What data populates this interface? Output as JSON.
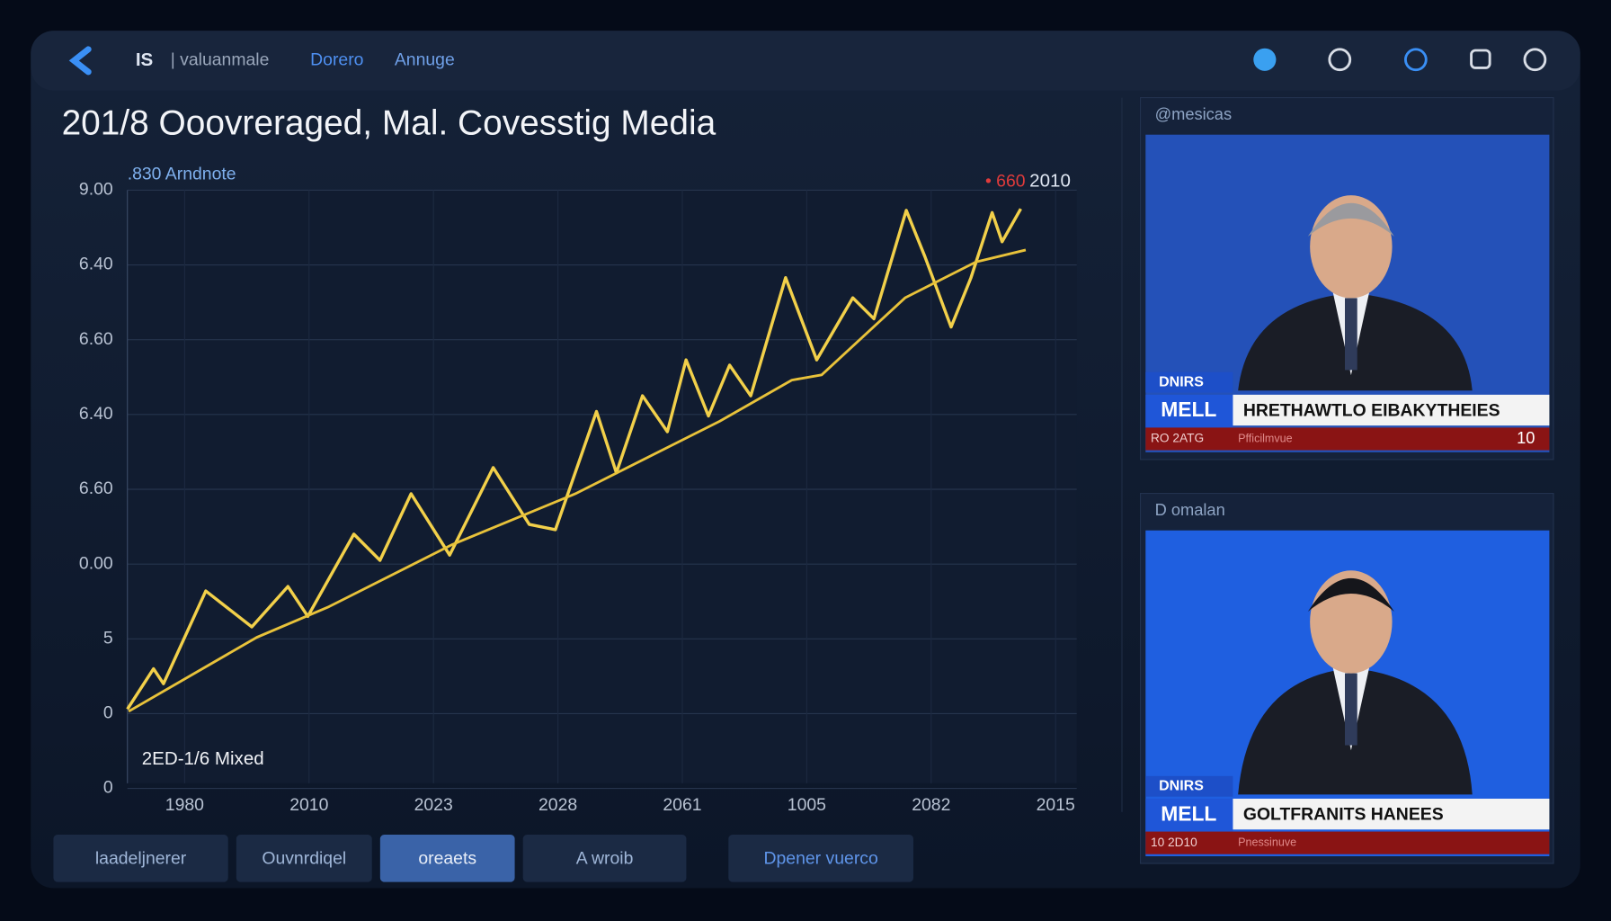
{
  "nav": {
    "badge": "IS",
    "items": [
      "| valuanmale",
      "Dorero",
      "Annuge"
    ]
  },
  "chart_data": {
    "type": "line",
    "title": "201/8 Ooovreraged, Mal. Covesstig Media",
    "annotation": ".830 Arndnote",
    "marker_label": "• 660",
    "marker_year": "2010",
    "note": "2ED-1/6 Mixed",
    "xlim": [
      -0.46,
      7.17
    ],
    "ylim": [
      0,
      8
    ],
    "grid": true,
    "xticks": [
      {
        "value": 0,
        "label": "1980"
      },
      {
        "value": 1,
        "label": "2010"
      },
      {
        "value": 2,
        "label": "2023"
      },
      {
        "value": 3,
        "label": "2028"
      },
      {
        "value": 4,
        "label": "2061"
      },
      {
        "value": 5,
        "label": "1005"
      },
      {
        "value": 6,
        "label": "2082"
      },
      {
        "value": 7,
        "label": "2015"
      }
    ],
    "yticks": [
      {
        "value": 0,
        "label": "0"
      },
      {
        "value": 1,
        "label": "0"
      },
      {
        "value": 2,
        "label": "5"
      },
      {
        "value": 3,
        "label": "0.00"
      },
      {
        "value": 4,
        "label": "6.60"
      },
      {
        "value": 5,
        "label": "6.40"
      },
      {
        "value": 6,
        "label": "6.60"
      },
      {
        "value": 7,
        "label": "6.40"
      },
      {
        "value": 8,
        "label": "9.00"
      }
    ],
    "series": [
      {
        "color": "#f2d04a",
        "x": [
          -0.46,
          -0.25,
          -0.17,
          0.17,
          0.54,
          0.83,
          0.99,
          1.36,
          1.57,
          1.82,
          2.13,
          2.48,
          2.77,
          2.98,
          3.31,
          3.47,
          3.68,
          3.88,
          4.03,
          4.21,
          4.38,
          4.55,
          4.83,
          5.08,
          5.37,
          5.54,
          5.8,
          5.95,
          6.16,
          6.32,
          6.49,
          6.57,
          6.72
        ],
        "values": [
          1.06,
          1.6,
          1.4,
          2.64,
          2.16,
          2.7,
          2.3,
          3.4,
          3.05,
          3.94,
          3.12,
          4.29,
          3.53,
          3.46,
          5.04,
          4.22,
          5.25,
          4.77,
          5.73,
          4.98,
          5.66,
          5.25,
          6.83,
          5.73,
          6.56,
          6.28,
          7.73,
          7.11,
          6.17,
          6.83,
          7.7,
          7.31,
          7.75
        ]
      },
      {
        "color": "#e8c23a",
        "x": [
          -0.45,
          0.58,
          1.16,
          2.15,
          3.14,
          4.3,
          4.88,
          5.12,
          5.79,
          6.36,
          6.76
        ],
        "values": [
          1.03,
          2.02,
          2.43,
          3.26,
          3.94,
          4.91,
          5.46,
          5.53,
          6.56,
          7.04,
          7.2
        ]
      }
    ]
  },
  "panels": [
    {
      "header": "@mesicas",
      "tag": "DNIRS",
      "channel": "MELL",
      "headline": "HRETHAWTLO EIBAKYTHEIES",
      "ticker": "RO 2ATG",
      "ticker2": "Pfficilmvue",
      "counter": "10"
    },
    {
      "header": "D omalan",
      "tag": "DNIRS",
      "channel": "MELL",
      "headline": "GOLTFRANITS HANEES",
      "ticker": "10 2D10",
      "ticker2": "Pnessinuve"
    }
  ],
  "buttons": [
    "laadeljnerer",
    "Ouvnrdiqel",
    "oreaets",
    "A wroib",
    "Dpener vuerco"
  ]
}
